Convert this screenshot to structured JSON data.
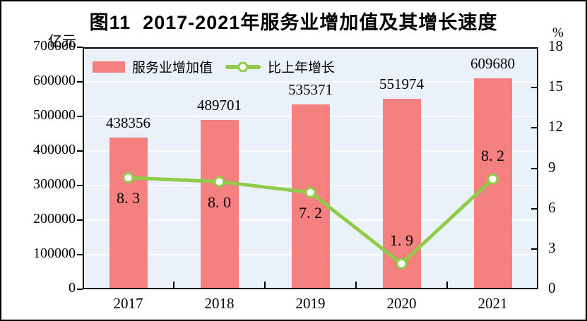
{
  "figure": {
    "title": "图11  2017-2021年服务业增加值及其增长速度",
    "left_axis_unit": "亿元",
    "right_axis_unit": "%"
  },
  "legend": {
    "bar_label": "服务业增加值",
    "line_label": "比上年增长"
  },
  "chart_data": {
    "type": "combo-bar-line",
    "title": "图11  2017-2021年服务业增加值及其增长速度",
    "categories": [
      "2017",
      "2018",
      "2019",
      "2020",
      "2021"
    ],
    "series": [
      {
        "name": "服务业增加值",
        "type": "bar",
        "axis": "left",
        "unit": "亿元",
        "values": [
          438356,
          489701,
          535371,
          551974,
          609680
        ],
        "value_labels": [
          "438356",
          "489701",
          "535371",
          "551974",
          "609680"
        ]
      },
      {
        "name": "比上年增长",
        "type": "line",
        "axis": "right",
        "unit": "%",
        "values": [
          8.3,
          8.0,
          7.2,
          1.9,
          8.2
        ],
        "value_labels": [
          "8. 3",
          "8. 0",
          "7. 2",
          "1. 9",
          "8. 2"
        ],
        "label_placement": [
          "below",
          "below",
          "below",
          "above",
          "above"
        ]
      }
    ],
    "left_axis": {
      "label": "亿元",
      "range": [
        0,
        700000
      ],
      "tick_step": 100000,
      "ticks": [
        "700000",
        "600000",
        "500000",
        "400000",
        "300000",
        "200000",
        "100000",
        "0"
      ]
    },
    "right_axis": {
      "label": "%",
      "range": [
        0,
        18
      ],
      "tick_step": 3,
      "ticks": [
        "18",
        "15",
        "12",
        "9",
        "6",
        "3",
        "0"
      ]
    },
    "grid": "horizontal-white-lines-at-left-axis-steps",
    "legend_position": "top-left-inside",
    "colors": {
      "bar": "#F58080",
      "line": "#90CB4A",
      "marker_fill": "#FFFFFF",
      "plot_bg": "#EAF1F8",
      "grid": "#FFFFFF",
      "text": "#000000",
      "frame": "#000000"
    }
  }
}
